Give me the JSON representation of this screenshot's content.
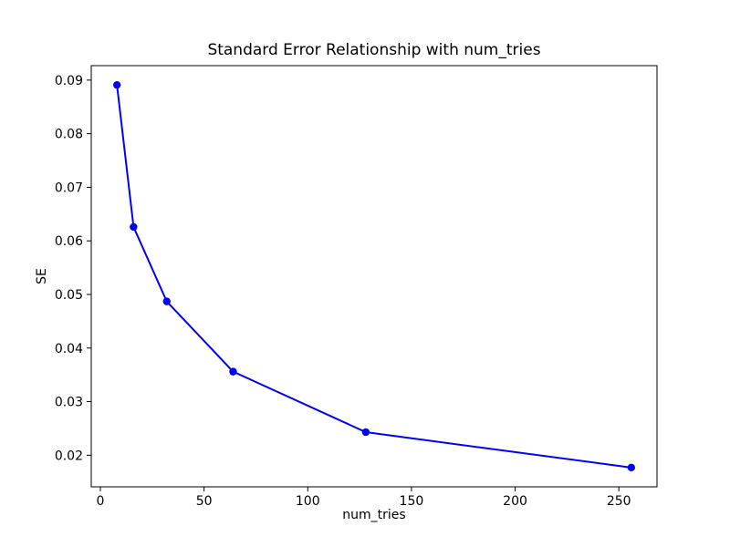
{
  "chart_data": {
    "type": "line",
    "title": "Standard Error Relationship with num_tries",
    "xlabel": "num_tries",
    "ylabel": "SE",
    "x": [
      8,
      16,
      32,
      64,
      128,
      256
    ],
    "y": [
      0.0891,
      0.0626,
      0.0487,
      0.0356,
      0.0243,
      0.0177
    ],
    "xticks": [
      0,
      50,
      100,
      150,
      200,
      250
    ],
    "yticks": [
      0.02,
      0.03,
      0.04,
      0.05,
      0.06,
      0.07,
      0.08,
      0.09
    ],
    "ytick_decimals": 2,
    "xlim": [
      -4.4,
      268.4
    ],
    "ylim": [
      0.0141,
      0.0927
    ],
    "grid": false,
    "legend_position": "none",
    "line_color": "#0000ff",
    "marker": "o",
    "axis_color": "#000000",
    "background_color": "#ffffff"
  }
}
